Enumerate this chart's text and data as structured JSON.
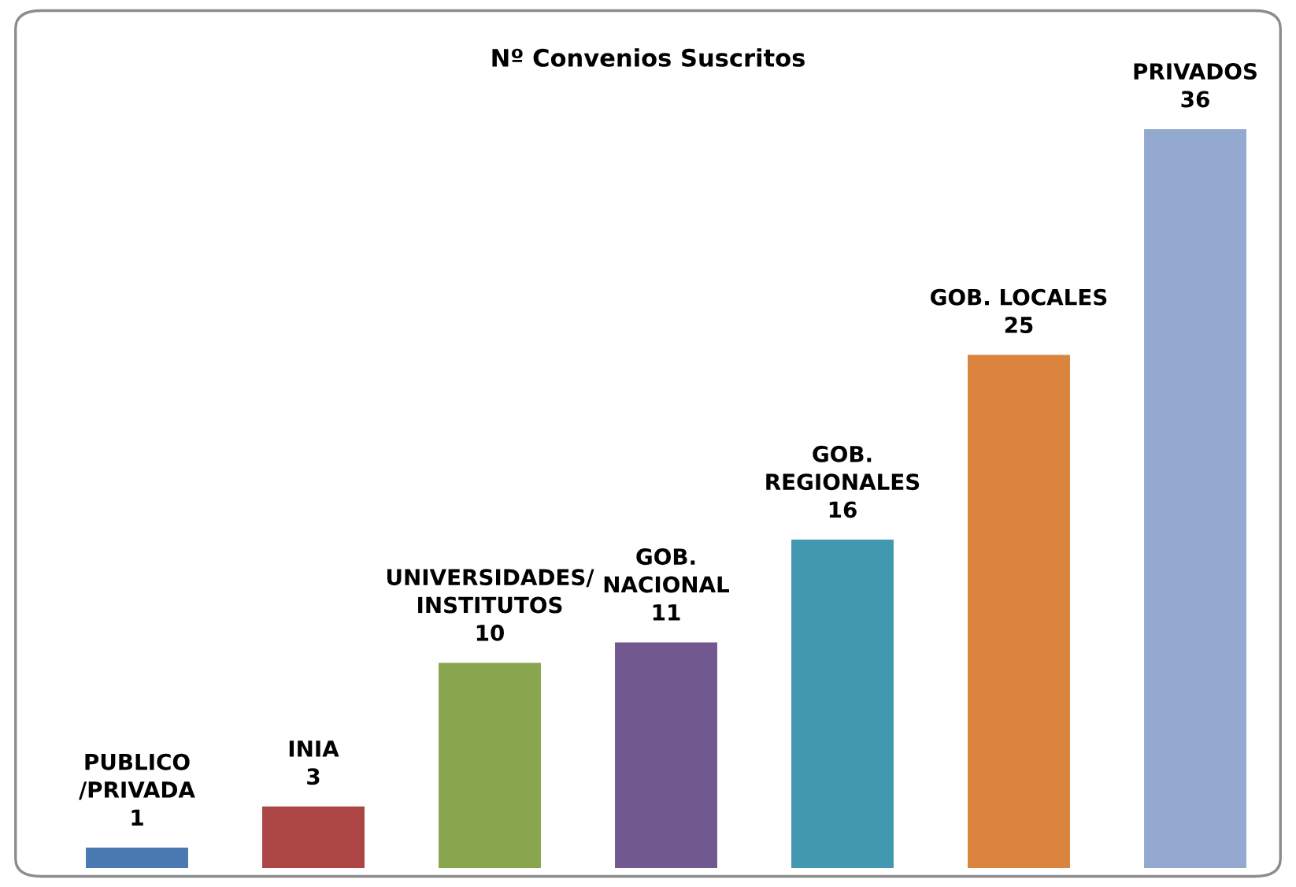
{
  "chart_data": {
    "type": "bar",
    "title": "Nº Convenios Suscritos",
    "categories": [
      "PUBLICO\n/PRIVADA",
      "INIA",
      "UNIVERSIDADES/\nINSTITUTOS",
      "GOB.\nNACIONAL",
      "GOB.\nREGIONALES",
      "GOB. LOCALES",
      "PRIVADOS"
    ],
    "values": [
      1,
      3,
      10,
      11,
      16,
      25,
      36
    ],
    "colors": [
      "#4a78b0",
      "#ab4644",
      "#89a54e",
      "#71588f",
      "#4198af",
      "#db843d",
      "#93a9cf"
    ],
    "data_labels": true
  }
}
